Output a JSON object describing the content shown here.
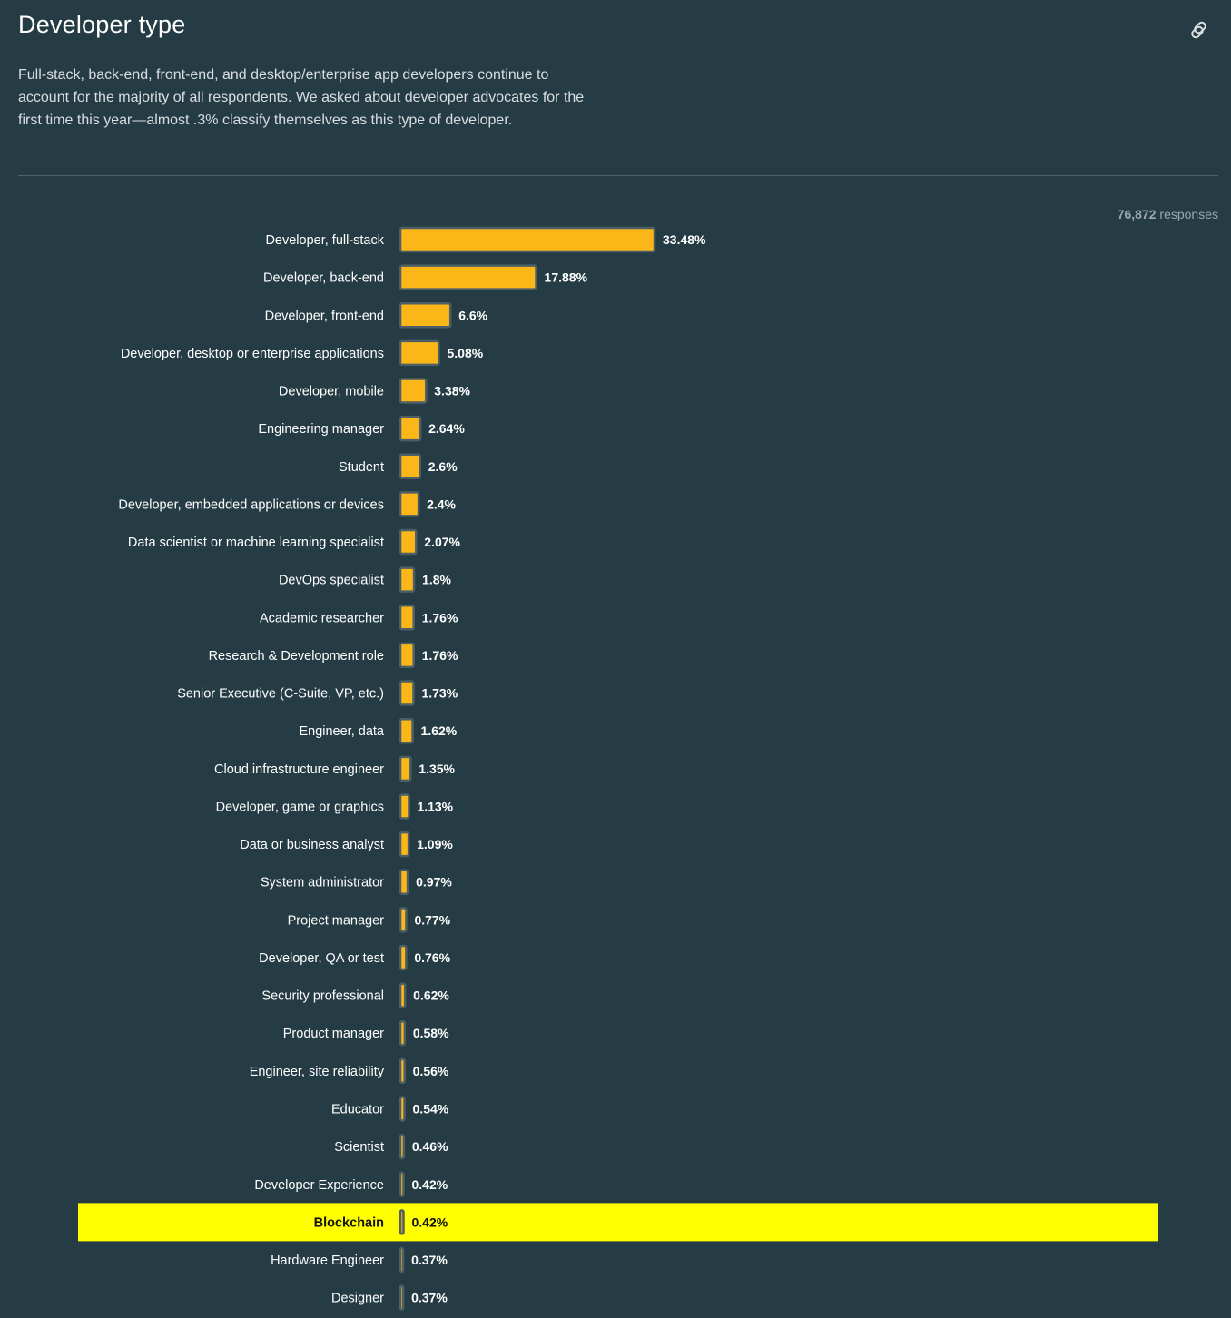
{
  "header": {
    "title": "Developer type",
    "description": "Full-stack, back-end, front-end, and desktop/enterprise app developers continue to account for the majority of all respondents. We asked about developer advocates for the first time this year—almost .3% classify themselves as this type of developer.",
    "link_icon": "link-icon"
  },
  "responses": {
    "count": "76,872",
    "label": "responses"
  },
  "colors": {
    "background": "#263c44",
    "bar_fill": "#fbb717",
    "bar_stroke": "#4d5f66",
    "highlight": "#ffff00"
  },
  "chart_data": {
    "type": "bar",
    "orientation": "horizontal",
    "title": "Developer type",
    "xlabel": "",
    "ylabel": "",
    "unit": "%",
    "highlighted": "Blockchain",
    "categories": [
      "Developer, full-stack",
      "Developer, back-end",
      "Developer, front-end",
      "Developer, desktop or enterprise applications",
      "Developer, mobile",
      "Engineering manager",
      "Student",
      "Developer, embedded applications or devices",
      "Data scientist or machine learning specialist",
      "DevOps specialist",
      "Academic researcher",
      "Research & Development role",
      "Senior Executive (C-Suite, VP, etc.)",
      "Engineer, data",
      "Cloud infrastructure engineer",
      "Developer, game or graphics",
      "Data or business analyst",
      "System administrator",
      "Project manager",
      "Developer, QA or test",
      "Security professional",
      "Product manager",
      "Engineer, site reliability",
      "Educator",
      "Scientist",
      "Developer Experience",
      "Blockchain",
      "Hardware Engineer",
      "Designer"
    ],
    "values": [
      33.48,
      17.88,
      6.6,
      5.08,
      3.38,
      2.64,
      2.6,
      2.4,
      2.07,
      1.8,
      1.76,
      1.76,
      1.73,
      1.62,
      1.35,
      1.13,
      1.09,
      0.97,
      0.77,
      0.76,
      0.62,
      0.58,
      0.56,
      0.54,
      0.46,
      0.42,
      0.42,
      0.37,
      0.37
    ],
    "value_labels": [
      "33.48%",
      "17.88%",
      "6.6%",
      "5.08%",
      "3.38%",
      "2.64%",
      "2.6%",
      "2.4%",
      "2.07%",
      "1.8%",
      "1.76%",
      "1.76%",
      "1.73%",
      "1.62%",
      "1.35%",
      "1.13%",
      "1.09%",
      "0.97%",
      "0.77%",
      "0.76%",
      "0.62%",
      "0.58%",
      "0.56%",
      "0.54%",
      "0.46%",
      "0.42%",
      "0.42%",
      "0.37%",
      "0.37%"
    ]
  }
}
